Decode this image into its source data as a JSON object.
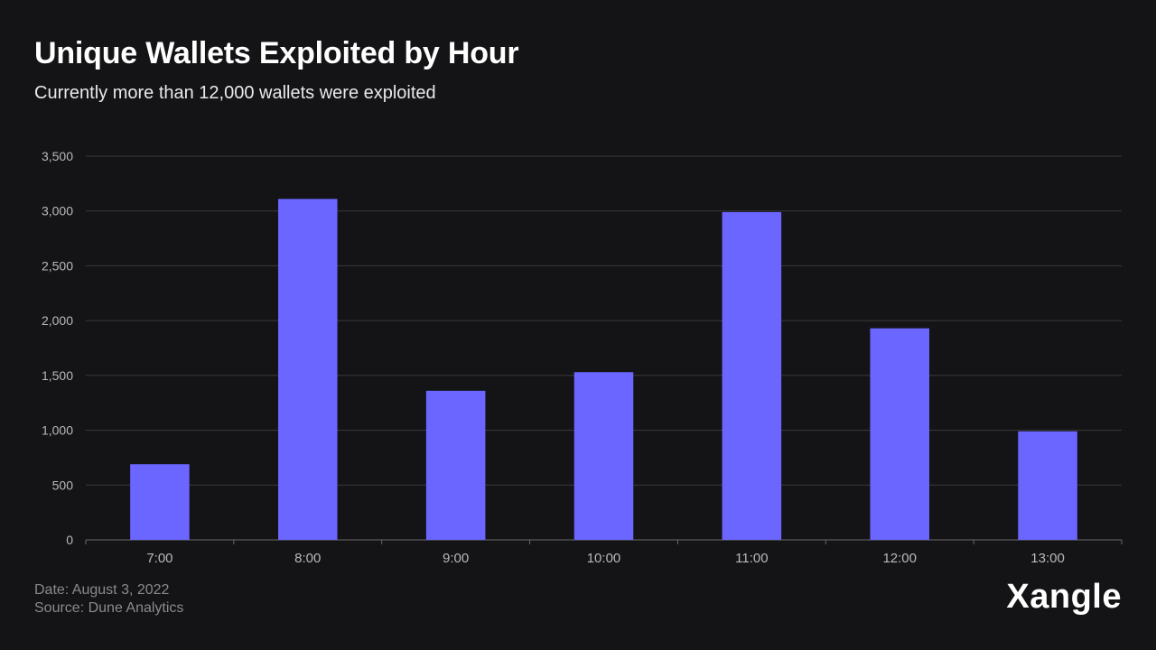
{
  "chart_data": {
    "type": "bar",
    "title": "Unique Wallets Exploited by Hour",
    "subtitle": "Currently more than 12,000 wallets were exploited",
    "categories": [
      "7:00",
      "8:00",
      "9:00",
      "10:00",
      "11:00",
      "12:00",
      "13:00"
    ],
    "values": [
      690,
      3110,
      1360,
      1530,
      2990,
      1930,
      990
    ],
    "xlabel": "",
    "ylabel": "",
    "ylim": [
      0,
      3500
    ],
    "yticks": [
      0,
      500,
      1000,
      1500,
      2000,
      2500,
      3000,
      3500
    ],
    "ytick_labels": [
      "0",
      "500",
      "1,000",
      "1,500",
      "2,000",
      "2,500",
      "3,000",
      "3,500"
    ],
    "grid": true,
    "bar_color": "#6b66ff",
    "grid_color": "#3a3a3e",
    "axis_text_color": "#b9b9bd",
    "background": "#141315"
  },
  "footer": {
    "date": "Date: August 3, 2022",
    "source": "Source: Dune Analytics"
  },
  "brand": {
    "name": "Xangle"
  }
}
